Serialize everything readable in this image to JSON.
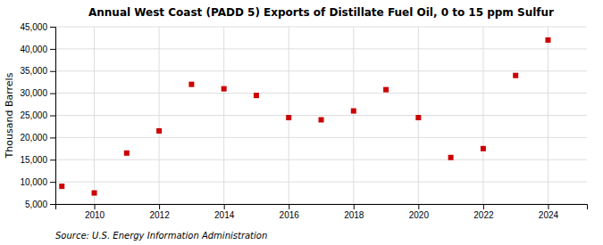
{
  "chart_data": {
    "type": "scatter",
    "title": "Annual West Coast (PADD 5) Exports of Distillate Fuel Oil, 0 to 15 ppm Sulfur",
    "ylabel": "Thousand Barrels",
    "source": "Source: U.S. Energy Information Administration",
    "x": [
      2009,
      2010,
      2011,
      2012,
      2013,
      2014,
      2015,
      2016,
      2017,
      2018,
      2019,
      2020,
      2021,
      2022,
      2023,
      2024
    ],
    "values": [
      9000,
      7500,
      16500,
      21500,
      32000,
      31000,
      29500,
      24500,
      24000,
      26000,
      30800,
      24500,
      15500,
      17500,
      34000,
      42000
    ],
    "color": "#cc0000",
    "marker": "square",
    "xlim": [
      2008.8,
      2025.2
    ],
    "xticks": [
      2010,
      2012,
      2014,
      2016,
      2018,
      2020,
      2022,
      2024
    ],
    "ylim": [
      5000,
      45000
    ],
    "yticks": [
      {
        "value": 5000,
        "label": "5,000"
      },
      {
        "value": 10000,
        "label": "10,000"
      },
      {
        "value": 15000,
        "label": "15,000"
      },
      {
        "value": 20000,
        "label": "20,000"
      },
      {
        "value": 25000,
        "label": "25,000"
      },
      {
        "value": 30000,
        "label": "30,000"
      },
      {
        "value": 35000,
        "label": "35,000"
      },
      {
        "value": 40000,
        "label": "40,000"
      },
      {
        "value": 45000,
        "label": "45,000"
      }
    ],
    "grid": true
  }
}
